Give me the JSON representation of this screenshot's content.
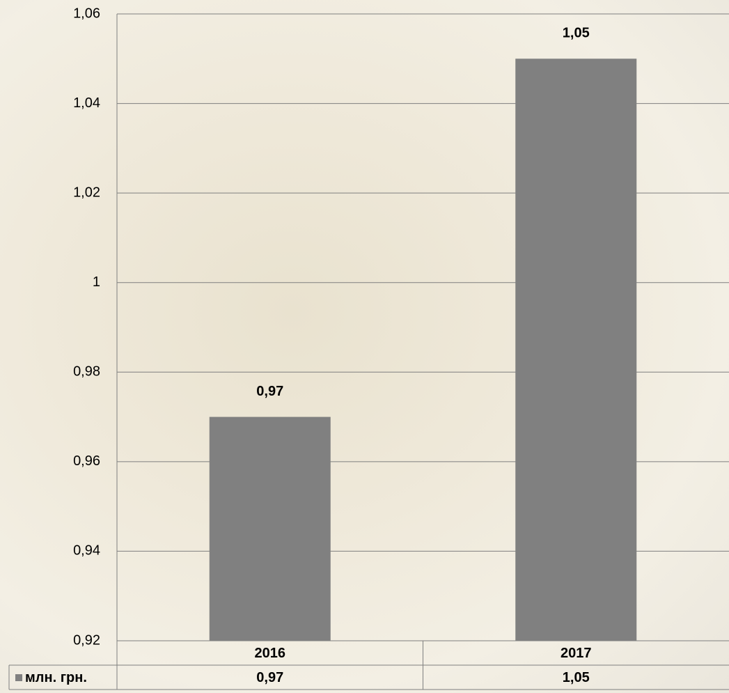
{
  "chart_data": {
    "type": "bar",
    "categories": [
      "2016",
      "2017"
    ],
    "series": [
      {
        "name": "млн. грн.",
        "color": "#808080",
        "values": [
          0.97,
          1.05
        ],
        "value_labels": [
          "0,97",
          "1,05"
        ]
      }
    ],
    "ylim": [
      0.92,
      1.06
    ],
    "yticks": [
      {
        "value": 0.92,
        "label": "0,92"
      },
      {
        "value": 0.94,
        "label": "0,94"
      },
      {
        "value": 0.96,
        "label": "0,96"
      },
      {
        "value": 0.98,
        "label": "0,98"
      },
      1,
      {
        "value": 1.02,
        "label": "1,02"
      },
      {
        "value": 1.04,
        "label": "1,04"
      },
      {
        "value": 1.06,
        "label": "1,06"
      }
    ],
    "grid": true
  }
}
